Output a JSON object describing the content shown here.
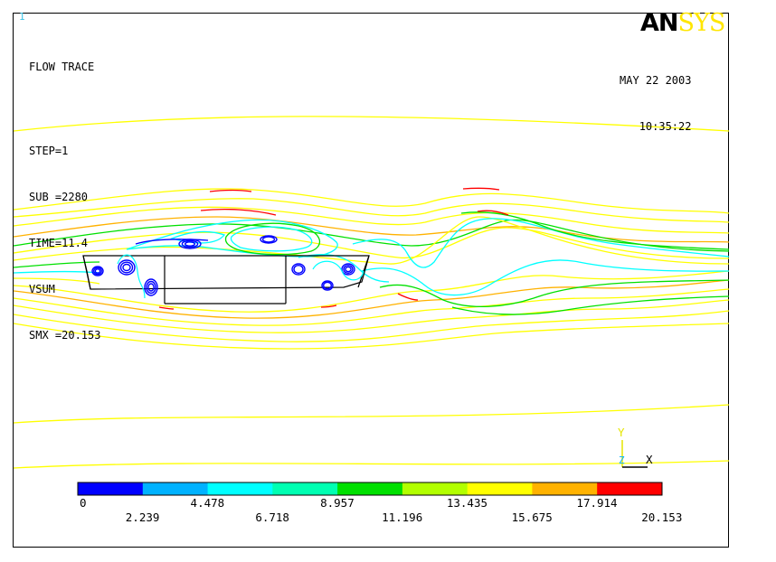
{
  "window": {
    "number": "1"
  },
  "header": {
    "plot_type": "FLOW TRACE",
    "step": "STEP=1",
    "sub": "SUB =2280",
    "time": "TIME=11.4",
    "quantity": "VSUM",
    "smx": "SMX =20.153"
  },
  "logo": {
    "an": "AN",
    "sys": "SYS"
  },
  "datetime": {
    "date": "MAY 22 2003",
    "time": "10:35:22"
  },
  "triad": {
    "y": "Y",
    "z": "Z",
    "x": "X"
  },
  "legend": {
    "colors": [
      "#0000ff",
      "#00b2ff",
      "#00ffff",
      "#00ffb2",
      "#00e000",
      "#b2ff00",
      "#ffff00",
      "#ffb200",
      "#ff0000"
    ],
    "labels_top": [
      "0",
      "4.478",
      "8.957",
      "13.435",
      "17.914"
    ],
    "labels_bottom": [
      "2.239",
      "6.718",
      "11.196",
      "15.675",
      "20.153"
    ]
  },
  "colors": {
    "background": "#ffffff",
    "stream_yellow": "#ffff00",
    "stream_orange": "#ffb200",
    "stream_green": "#00e000",
    "stream_cyan": "#00ffff",
    "stream_red": "#ff0000",
    "vortex_blue": "#0000ff",
    "body_outline": "#000000"
  }
}
